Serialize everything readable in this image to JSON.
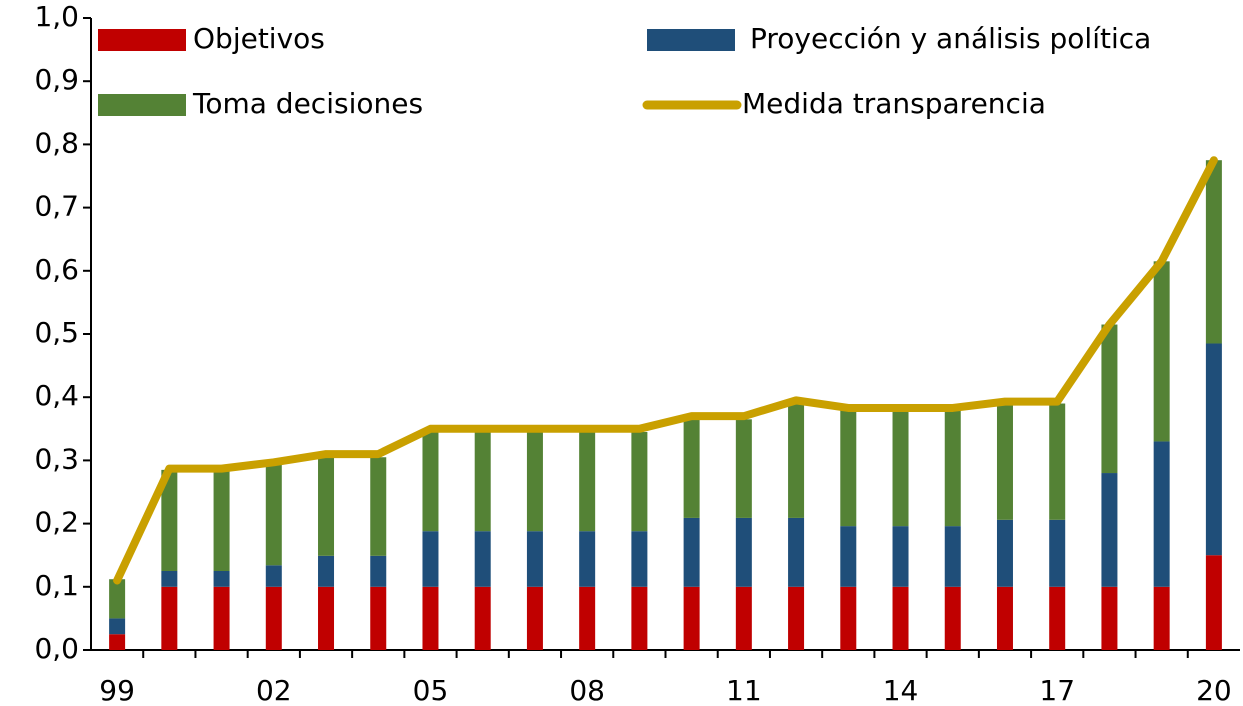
{
  "chart_data": {
    "type": "bar",
    "stacked": true,
    "categories": [
      "99",
      null,
      null,
      "02",
      null,
      null,
      "05",
      null,
      null,
      "08",
      null,
      null,
      "11",
      null,
      null,
      "14",
      null,
      null,
      "17",
      null,
      null,
      "20"
    ],
    "series": [
      {
        "name": "Objetivos",
        "color": "#c00000",
        "values": [
          0.025,
          0.1,
          0.1,
          0.1,
          0.1,
          0.1,
          0.1,
          0.1,
          0.1,
          0.1,
          0.1,
          0.1,
          0.1,
          0.1,
          0.1,
          0.1,
          0.1,
          0.1,
          0.1,
          0.1,
          0.1,
          0.15
        ]
      },
      {
        "name": "Proyección y análisis política",
        "color": "#1f4e79",
        "values": [
          0.025,
          0.025,
          0.025,
          0.034,
          0.049,
          0.049,
          0.088,
          0.088,
          0.088,
          0.088,
          0.088,
          0.109,
          0.109,
          0.109,
          0.096,
          0.096,
          0.096,
          0.106,
          0.106,
          0.18,
          0.23,
          0.335
        ]
      },
      {
        "name": "Toma decisiones",
        "color": "#548235",
        "values": [
          0.062,
          0.16,
          0.16,
          0.161,
          0.156,
          0.156,
          0.157,
          0.157,
          0.157,
          0.157,
          0.157,
          0.156,
          0.156,
          0.181,
          0.184,
          0.184,
          0.184,
          0.184,
          0.184,
          0.235,
          0.285,
          0.29
        ]
      },
      {
        "name": "Medida transparencia",
        "type": "line",
        "color": "#c9a000",
        "values": [
          0.11,
          0.287,
          0.287,
          0.297,
          0.31,
          0.31,
          0.35,
          0.35,
          0.35,
          0.35,
          0.35,
          0.37,
          0.37,
          0.395,
          0.383,
          0.383,
          0.383,
          0.393,
          0.393,
          0.515,
          0.615,
          0.775
        ]
      }
    ],
    "ylim": [
      0,
      1
    ],
    "yticks": [
      {
        "value": 0,
        "label": "0,0"
      },
      {
        "value": 0.1,
        "label": "0,1"
      },
      {
        "value": 0.2,
        "label": "0,2"
      },
      {
        "value": 0.3,
        "label": "0,3"
      },
      {
        "value": 0.4,
        "label": "0,4"
      },
      {
        "value": 0.5,
        "label": "0,5"
      },
      {
        "value": 0.6,
        "label": "0,6"
      },
      {
        "value": 0.7,
        "label": "0,7"
      },
      {
        "value": 0.8,
        "label": "0,8"
      },
      {
        "value": 0.9,
        "label": "0,9"
      },
      {
        "value": 1,
        "label": "1,0"
      }
    ],
    "grid": false,
    "legend": "top"
  }
}
